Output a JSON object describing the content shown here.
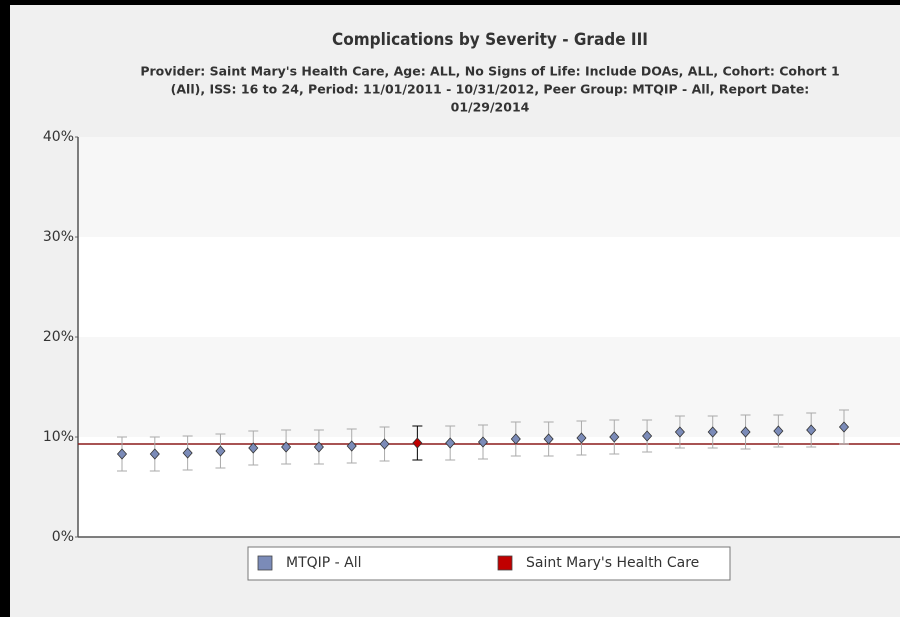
{
  "chart_data": {
    "type": "errorbar",
    "title": "Complications by Severity - Grade III",
    "subtitle": [
      "Provider: Saint Mary's Health Care, Age: ALL, No Signs of Life: Include DOAs, ALL, Cohort: Cohort 1",
      "(All), ISS: 16 to 24, Period: 11/01/2011 - 10/31/2012, Peer Group: MTQIP - All, Report Date:",
      "01/29/2014"
    ],
    "categories": [
      null,
      null,
      null,
      null,
      null,
      null,
      null,
      null,
      null,
      null,
      null,
      null,
      null,
      null,
      null,
      null,
      null,
      null,
      null,
      null,
      null,
      null,
      null
    ],
    "series": [
      {
        "name": "MTQIP - All",
        "color": "#7b8bb8",
        "values": [
          8.3,
          8.3,
          8.4,
          8.6,
          8.9,
          9.0,
          9.0,
          9.1,
          9.3,
          null,
          9.4,
          9.5,
          9.8,
          9.8,
          9.9,
          10.0,
          10.1,
          10.5,
          10.5,
          10.5,
          10.6,
          10.7,
          11.0
        ],
        "errors": [
          1.7,
          1.7,
          1.7,
          1.7,
          1.7,
          1.7,
          1.7,
          1.7,
          1.7,
          null,
          1.7,
          1.7,
          1.7,
          1.7,
          1.7,
          1.7,
          1.6,
          1.6,
          1.6,
          1.7,
          1.6,
          1.7,
          1.7
        ]
      },
      {
        "name": "Saint Mary's Health Care",
        "color": "#c00000",
        "values": [
          null,
          null,
          null,
          null,
          null,
          null,
          null,
          null,
          null,
          9.4,
          null,
          null,
          null,
          null,
          null,
          null,
          null,
          null,
          null,
          null,
          null,
          null,
          null
        ],
        "errors": [
          null,
          null,
          null,
          null,
          null,
          null,
          null,
          null,
          null,
          1.7,
          null,
          null,
          null,
          null,
          null,
          null,
          null,
          null,
          null,
          null,
          null,
          null,
          null
        ]
      }
    ],
    "reference_line": 9.3,
    "reference_color": "#8b1a1a",
    "ylim": [
      0,
      40
    ],
    "yticks": [
      {
        "value": 0,
        "label": "0%"
      },
      {
        "value": 10,
        "label": "10%"
      },
      {
        "value": 20,
        "label": "20%"
      },
      {
        "value": 30,
        "label": "30%"
      },
      {
        "value": 40,
        "label": "40%"
      }
    ],
    "legend": "bottom"
  }
}
